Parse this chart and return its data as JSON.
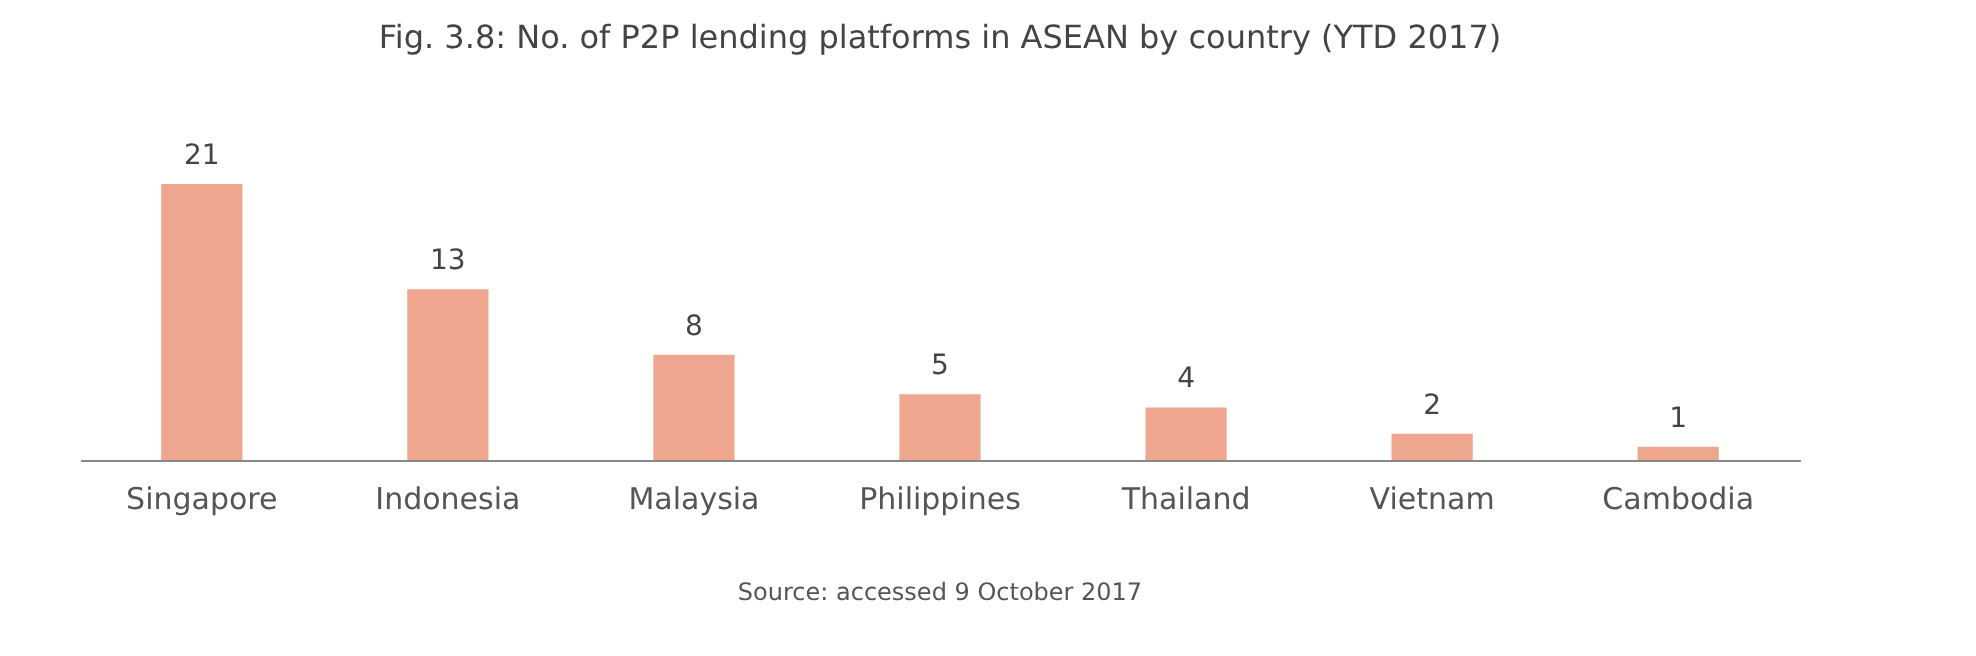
{
  "chart_data": {
    "type": "bar",
    "title": "Fig. 3.8: No. of P2P lending platforms in ASEAN by country (YTD 2017)",
    "categories": [
      "Singapore",
      "Indonesia",
      "Malaysia",
      "Philippines",
      "Thailand",
      "Vietnam",
      "Cambodia"
    ],
    "values": [
      21,
      13,
      8,
      5,
      4,
      2,
      1
    ],
    "color": "#eea68f",
    "data_labels": true,
    "grid": false,
    "annotations": [
      "Source: accessed 9 October 2017"
    ]
  }
}
